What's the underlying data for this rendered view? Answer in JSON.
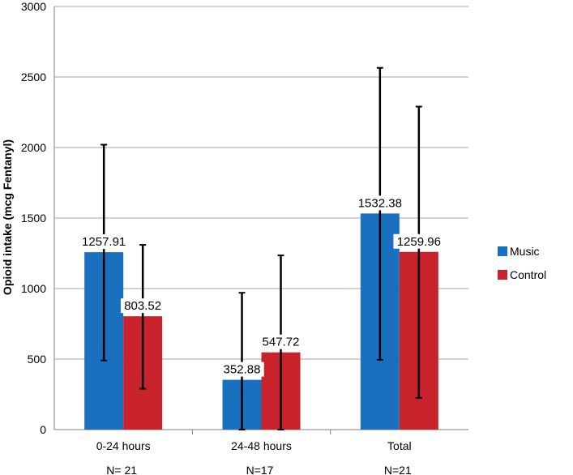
{
  "chart_data": {
    "type": "bar",
    "title": "",
    "xlabel": "",
    "ylabel": "Opioid intake (mcg Fentanyl)",
    "ylim": [
      0,
      3000
    ],
    "yticks": [
      0,
      500,
      1000,
      1500,
      2000,
      2500,
      3000
    ],
    "grid": true,
    "legend_position": "right",
    "categories": [
      "0-24 hours",
      "24-48 hours",
      "Total"
    ],
    "sample_sizes": [
      "N= 21",
      "N=17",
      "N=21"
    ],
    "series": [
      {
        "name": "Music",
        "color": "#1a6fbf",
        "values": [
          1257.91,
          352.88,
          1532.38
        ],
        "labels": [
          "1257.91",
          "352.88",
          "1532.38"
        ],
        "error_low": [
          490,
          0,
          495
        ],
        "error_high": [
          2020,
          970,
          2565
        ]
      },
      {
        "name": "Control",
        "color": "#c8232c",
        "values": [
          803.52,
          547.72,
          1259.96
        ],
        "labels": [
          "803.52",
          "547.72",
          "1259.96"
        ],
        "error_low": [
          290,
          0,
          225
        ],
        "error_high": [
          1310,
          1235,
          2290
        ]
      }
    ]
  }
}
